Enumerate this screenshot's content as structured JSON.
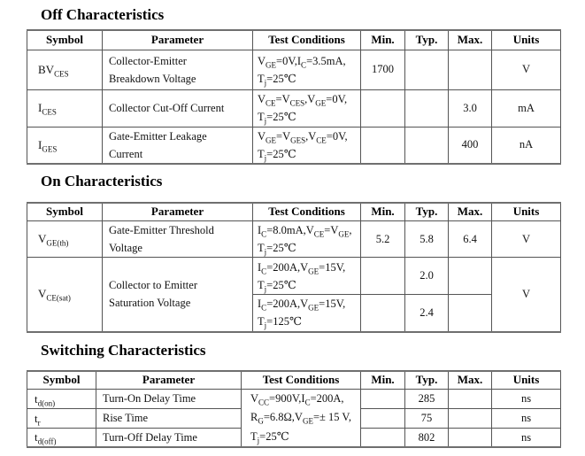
{
  "columns": [
    "Symbol",
    "Parameter",
    "Test Conditions",
    "Min.",
    "Typ.",
    "Max.",
    "Units"
  ],
  "off": {
    "title": "Off Characteristics",
    "rows": [
      {
        "symbol": [
          {
            "t": "BV"
          },
          {
            "s": "CES"
          }
        ],
        "param": [
          "Collector-Emitter",
          "Breakdown Voltage"
        ],
        "tc": [
          [
            {
              "t": "V"
            },
            {
              "s": "GE"
            },
            {
              "t": "=0V,I"
            },
            {
              "s": "C"
            },
            {
              "t": "=3.5mA,"
            }
          ],
          [
            {
              "t": "T"
            },
            {
              "s": "j"
            },
            {
              "t": "=25℃"
            }
          ]
        ],
        "min": "1700",
        "typ": "",
        "max": "",
        "units": "V"
      },
      {
        "symbol": [
          {
            "t": "I"
          },
          {
            "s": "CES"
          }
        ],
        "param": [
          "Collector Cut-Off Current"
        ],
        "tc": [
          [
            {
              "t": "V"
            },
            {
              "s": "CE"
            },
            {
              "t": "=V"
            },
            {
              "s": "CES"
            },
            {
              "t": ",V"
            },
            {
              "s": "GE"
            },
            {
              "t": "=0V,"
            }
          ],
          [
            {
              "t": "T"
            },
            {
              "s": "j"
            },
            {
              "t": "=25℃"
            }
          ]
        ],
        "min": "",
        "typ": "",
        "max": "3.0",
        "units": "mA"
      },
      {
        "symbol": [
          {
            "t": "I"
          },
          {
            "s": "GES"
          }
        ],
        "param": [
          "Gate-Emitter Leakage",
          "Current"
        ],
        "tc": [
          [
            {
              "t": "V"
            },
            {
              "s": "GE"
            },
            {
              "t": "=V"
            },
            {
              "s": "GES"
            },
            {
              "t": ",V"
            },
            {
              "s": "CE"
            },
            {
              "t": "=0V,"
            }
          ],
          [
            {
              "t": "T"
            },
            {
              "s": "j"
            },
            {
              "t": "=25℃"
            }
          ]
        ],
        "min": "",
        "typ": "",
        "max": "400",
        "units": "nA"
      }
    ]
  },
  "on": {
    "title": "On Characteristics",
    "row1": {
      "symbol": [
        {
          "t": "V"
        },
        {
          "s": "GE(th)"
        }
      ],
      "param": [
        "Gate-Emitter Threshold",
        "Voltage"
      ],
      "tc": [
        [
          {
            "t": "I"
          },
          {
            "s": "C"
          },
          {
            "t": "=8.0mA,V"
          },
          {
            "s": "CE"
          },
          {
            "t": "=V"
          },
          {
            "s": "GE"
          },
          {
            "t": ","
          }
        ],
        [
          {
            "t": "T"
          },
          {
            "s": "j"
          },
          {
            "t": "=25℃"
          }
        ]
      ],
      "min": "5.2",
      "typ": "5.8",
      "max": "6.4",
      "units": "V"
    },
    "row2": {
      "symbol": [
        {
          "t": "V"
        },
        {
          "s": "CE(sat)"
        }
      ],
      "param": [
        "Collector to Emitter",
        "Saturation Voltage"
      ],
      "units": "V",
      "sub": [
        {
          "tc": [
            [
              {
                "t": "I"
              },
              {
                "s": "C"
              },
              {
                "t": "=200A,V"
              },
              {
                "s": "GE"
              },
              {
                "t": "=15V,"
              }
            ],
            [
              {
                "t": "T"
              },
              {
                "s": "j"
              },
              {
                "t": "=25℃"
              }
            ]
          ],
          "min": "",
          "typ": "2.0",
          "max": ""
        },
        {
          "tc": [
            [
              {
                "t": "I"
              },
              {
                "s": "C"
              },
              {
                "t": "=200A,V"
              },
              {
                "s": "GE"
              },
              {
                "t": "=15V,"
              }
            ],
            [
              {
                "t": "T"
              },
              {
                "s": "j"
              },
              {
                "t": "=125℃"
              }
            ]
          ],
          "min": "",
          "typ": "2.4",
          "max": ""
        }
      ]
    }
  },
  "sw": {
    "title": "Switching Characteristics",
    "tc": [
      [
        {
          "t": "V"
        },
        {
          "s": "CC"
        },
        {
          "t": "=900V,I"
        },
        {
          "s": "C"
        },
        {
          "t": "=200A,"
        }
      ],
      [
        {
          "t": "R"
        },
        {
          "s": "G"
        },
        {
          "t": "=6.8Ω,V"
        },
        {
          "s": "GE"
        },
        {
          "t": "=± 15 V,"
        }
      ],
      [
        {
          "t": "T"
        },
        {
          "s": "j"
        },
        {
          "t": "=25℃"
        }
      ]
    ],
    "rows": [
      {
        "symbol": [
          {
            "t": "t"
          },
          {
            "s": "d(on)"
          }
        ],
        "param": "Turn-On Delay Time",
        "min": "",
        "typ": "285",
        "max": "",
        "units": "ns"
      },
      {
        "symbol": [
          {
            "t": "t"
          },
          {
            "s": "r"
          }
        ],
        "param": "Rise Time",
        "min": "",
        "typ": "75",
        "max": "",
        "units": "ns"
      },
      {
        "symbol": [
          {
            "t": "t"
          },
          {
            "s": "d(off)"
          }
        ],
        "param": "Turn-Off Delay Time",
        "min": "",
        "typ": "802",
        "max": "",
        "units": "ns"
      }
    ]
  }
}
